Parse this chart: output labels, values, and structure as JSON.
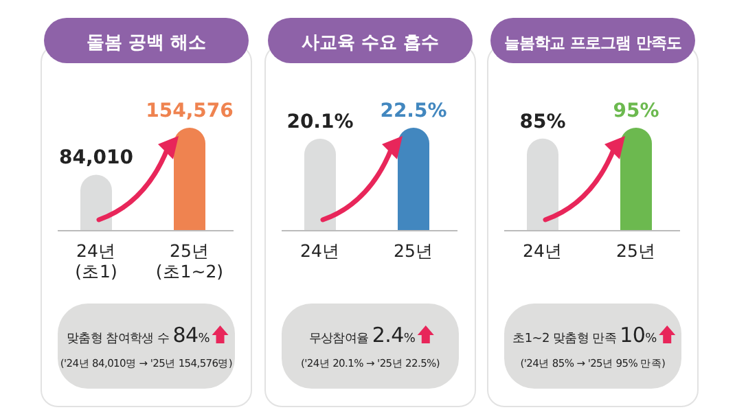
{
  "chart_data": [
    {
      "type": "bar",
      "title": "돌봄 공백 해소",
      "categories": [
        "24년\n(초1)",
        "25년\n(초1~2)"
      ],
      "values": [
        84010,
        154576
      ],
      "colors": [
        "#dcdddd",
        "#ef8350"
      ],
      "value_labels": [
        "84,010",
        "154,576"
      ],
      "annotations": [
        "맞춤형 참여학생 수 84%",
        "('24년 84,010명 → '25년 154,576명)"
      ]
    },
    {
      "type": "bar",
      "title": "사교육 수요 흡수",
      "categories": [
        "24년",
        "25년"
      ],
      "values": [
        20.1,
        22.5
      ],
      "colors": [
        "#dcdddd",
        "#4287bf"
      ],
      "value_labels": [
        "20.1%",
        "22.5%"
      ],
      "annotations": [
        "무상참여율 2.4%",
        "('24년 20.1% → '25년 22.5%)"
      ]
    },
    {
      "type": "bar",
      "title": "늘봄학교 프로그램 만족도",
      "categories": [
        "24년",
        "25년"
      ],
      "values": [
        85,
        95
      ],
      "colors": [
        "#dcdddd",
        "#6cb94f"
      ],
      "value_labels": [
        "85%",
        "95%"
      ],
      "annotations": [
        "초1~2 맞춤형 만족 10%",
        "('24년 85% → '25년 95% 만족)"
      ]
    }
  ]
}
